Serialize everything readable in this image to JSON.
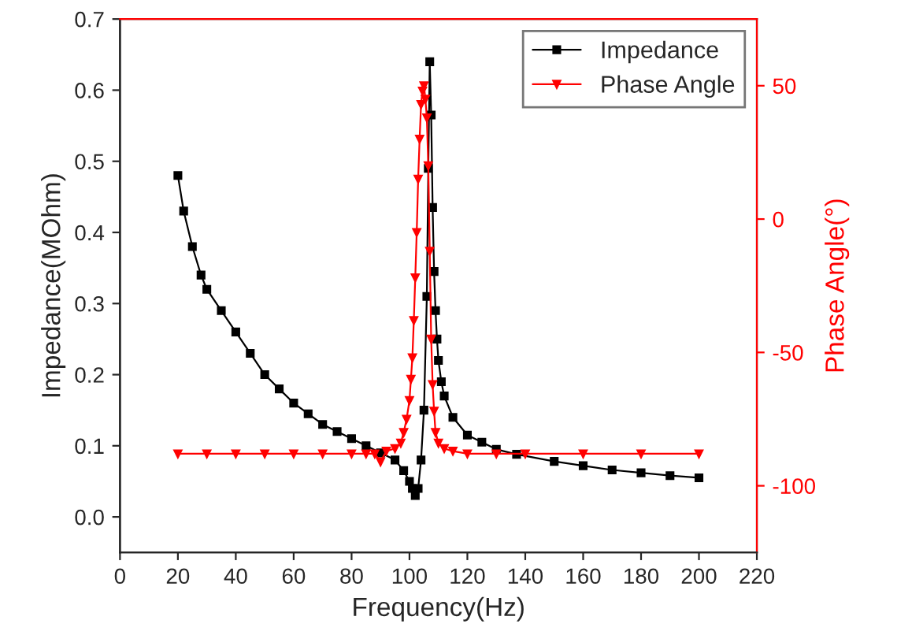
{
  "chart_data": {
    "type": "line",
    "xlabel": "Frequency(Hz)",
    "ylabel": "Impedance(MOhm)",
    "y2label": "Phase Angle(°)",
    "xlim": [
      0,
      220
    ],
    "xticks": [
      0,
      20,
      40,
      60,
      80,
      100,
      120,
      140,
      160,
      180,
      200,
      220
    ],
    "ylim": [
      -0.05,
      0.7
    ],
    "yticks": [
      {
        "value": 0,
        "label": "0.0"
      },
      0.1,
      0.2,
      0.3,
      0.4,
      0.5,
      0.6,
      0.7
    ],
    "y2lim": [
      -125,
      75
    ],
    "y2ticks": [
      -100,
      -50,
      0,
      50
    ],
    "grid": false,
    "legend": "top right",
    "series": [
      {
        "name": "Impedance",
        "color": "#000000",
        "marker": "square",
        "x": [
          20,
          22,
          25,
          28,
          30,
          35,
          40,
          45,
          50,
          55,
          60,
          65,
          70,
          75,
          80,
          85,
          90,
          95,
          98,
          100,
          101,
          102,
          103,
          104,
          105,
          106,
          106.5,
          107,
          107.5,
          108,
          108.5,
          109,
          109.5,
          110,
          111,
          112,
          115,
          120,
          125,
          130,
          137,
          150,
          160,
          170,
          180,
          190,
          200
        ],
        "values": [
          0.48,
          0.43,
          0.38,
          0.34,
          0.32,
          0.29,
          0.26,
          0.23,
          0.2,
          0.18,
          0.16,
          0.145,
          0.13,
          0.12,
          0.11,
          0.1,
          0.09,
          0.08,
          0.065,
          0.05,
          0.04,
          0.03,
          0.04,
          0.08,
          0.15,
          0.31,
          0.49,
          0.64,
          0.565,
          0.435,
          0.345,
          0.29,
          0.25,
          0.22,
          0.19,
          0.17,
          0.14,
          0.115,
          0.105,
          0.095,
          0.088,
          0.078,
          0.072,
          0.066,
          0.062,
          0.058,
          0.055
        ]
      },
      {
        "name": "Phase Angle",
        "color": "#ff0000",
        "marker": "triangle",
        "axis": "y2",
        "x": [
          20,
          30,
          40,
          50,
          60,
          70,
          80,
          85,
          88,
          90,
          92,
          95,
          97,
          98,
          99,
          100,
          100.5,
          101,
          101.5,
          102,
          102.5,
          103,
          103.5,
          104,
          104.5,
          105,
          105.5,
          106,
          106.5,
          107,
          107.5,
          108,
          108.5,
          109,
          110,
          112,
          115,
          120,
          130,
          140,
          160,
          180,
          200
        ],
        "values": [
          -88,
          -88,
          -88,
          -88,
          -88,
          -88,
          -88,
          -88,
          -88,
          -91,
          -87,
          -86,
          -84,
          -80,
          -75,
          -68,
          -60,
          -52,
          -38,
          -22,
          -5,
          15,
          30,
          43,
          48,
          50,
          45,
          38,
          20,
          -12,
          -45,
          -62,
          -72,
          -80,
          -84,
          -86,
          -87,
          -88,
          -88,
          -88,
          -88,
          -88,
          -88
        ]
      }
    ]
  }
}
